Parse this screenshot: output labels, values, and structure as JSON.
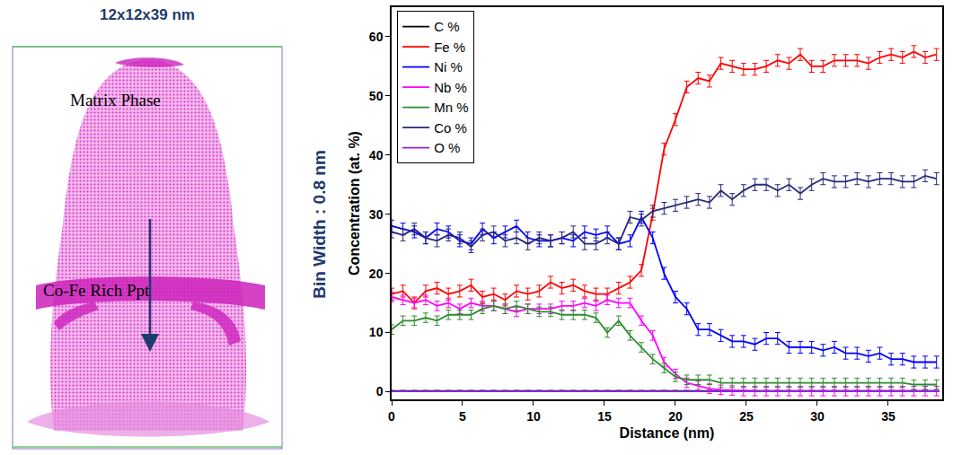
{
  "reconstruction": {
    "title": "12x12x39 nm",
    "labels": [
      "Matrix Phase",
      "Co-Fe Rich Ppt"
    ],
    "side_label": "Bin Width : 0.8 nm"
  },
  "chart_data": {
    "type": "line",
    "x_label": "Distance (nm)",
    "y_label": "Concentration (at. %)",
    "x": [
      0,
      0.8,
      1.6,
      2.4,
      3.2,
      4,
      4.8,
      5.6,
      6.4,
      7.2,
      8,
      8.8,
      9.6,
      10.4,
      11.2,
      12,
      12.8,
      13.6,
      14.4,
      15.2,
      16,
      16.8,
      17.6,
      18.4,
      19.2,
      20,
      20.8,
      21.6,
      22.4,
      23.2,
      24,
      24.8,
      25.6,
      26.4,
      27.2,
      28,
      28.8,
      29.6,
      30.4,
      31.2,
      32,
      32.8,
      33.6,
      34.4,
      35.2,
      36,
      36.8,
      37.6,
      38.4
    ],
    "series": [
      {
        "name": "C %",
        "color": "#000000",
        "error": 0.1,
        "values": [
          0.1,
          0.1,
          0.1,
          0.1,
          0.1,
          0.1,
          0.1,
          0.1,
          0.1,
          0.1,
          0.1,
          0.1,
          0.1,
          0.1,
          0.1,
          0.1,
          0.1,
          0.1,
          0.1,
          0.1,
          0.1,
          0.1,
          0.1,
          0.1,
          0.1,
          0.1,
          0.1,
          0.1,
          0.1,
          0.1,
          0.1,
          0.1,
          0.1,
          0.1,
          0.1,
          0.1,
          0.1,
          0.1,
          0.1,
          0.1,
          0.1,
          0.1,
          0.1,
          0.1,
          0.1,
          0.1,
          0.1,
          0.1,
          0.1
        ]
      },
      {
        "name": "Fe %",
        "color": "#ff0000",
        "error": 1,
        "values": [
          16.5,
          17,
          15,
          17,
          17.5,
          16.5,
          17,
          18,
          16,
          16.5,
          15.5,
          17,
          16.5,
          17,
          18.5,
          17.5,
          18,
          17,
          16.5,
          16.5,
          17.5,
          18.5,
          20.5,
          30,
          41,
          46,
          51.5,
          53,
          52.5,
          55.5,
          55,
          54.5,
          54.5,
          55,
          56,
          55.5,
          57,
          55,
          55,
          56,
          56,
          56,
          55.5,
          56.5,
          57,
          56.5,
          57.5,
          56.5,
          57
        ]
      },
      {
        "name": "Ni %",
        "color": "#0000ff",
        "error": 1,
        "values": [
          28,
          27.5,
          27,
          26,
          27.5,
          27,
          25.5,
          25,
          27.5,
          26,
          27,
          28,
          26,
          25.5,
          25.5,
          26,
          25.5,
          27,
          26.5,
          27,
          25,
          25.5,
          29.5,
          26,
          20,
          16,
          14,
          10.5,
          10.5,
          9.5,
          8.5,
          8.5,
          8,
          9,
          9,
          7.5,
          7.5,
          7.5,
          7,
          7.5,
          6.5,
          6.5,
          6,
          6.5,
          5.5,
          5.5,
          5,
          5,
          5
        ]
      },
      {
        "name": "Nb %",
        "color": "#ff00ff",
        "error": 0.8,
        "values": [
          16,
          15.5,
          15,
          15.5,
          14.5,
          15,
          14,
          15,
          14.5,
          14.5,
          14,
          13.5,
          14,
          14,
          14,
          14.5,
          14.5,
          15,
          14.5,
          15.5,
          15,
          15,
          12,
          9.5,
          5,
          3,
          1.5,
          1,
          0.5,
          0.3,
          0.2,
          0.1,
          0.1,
          0.1,
          0.1,
          0.1,
          0.1,
          0.1,
          0.1,
          0.1,
          0.1,
          0.1,
          0.1,
          0.1,
          0.1,
          0.1,
          0.1,
          0.1,
          0.1
        ]
      },
      {
        "name": "Mn %",
        "color": "#2e8b2e",
        "error": 0.8,
        "values": [
          10.5,
          12,
          12,
          12.5,
          12,
          13,
          13,
          13,
          14,
          14.5,
          14,
          14.5,
          14,
          13.5,
          13.5,
          13,
          13,
          13,
          12.5,
          10,
          12,
          9.5,
          7.5,
          5.5,
          4,
          2.5,
          2,
          2,
          2,
          1.5,
          1.5,
          1.5,
          1.5,
          1.5,
          1.5,
          1.5,
          1.5,
          1.5,
          1.5,
          1.5,
          1.5,
          1.5,
          1.5,
          1.5,
          1.5,
          1.5,
          1.2,
          1.2,
          1.2
        ]
      },
      {
        "name": "Co %",
        "color": "#27277a",
        "error": 1,
        "values": [
          27,
          26.5,
          27.5,
          26,
          25.5,
          26.5,
          26,
          24.5,
          26.5,
          27,
          25.5,
          26,
          25,
          26,
          25.5,
          26,
          27,
          25,
          25,
          26,
          25,
          29.5,
          29,
          30.5,
          31,
          31.5,
          32,
          32.5,
          32,
          34,
          32.5,
          34,
          35,
          35,
          34,
          35,
          33.5,
          35,
          36,
          35.5,
          35.5,
          36,
          35.5,
          36,
          36,
          35.5,
          35.5,
          36.5,
          36
        ]
      },
      {
        "name": "O %",
        "color": "#8a2be2",
        "error": 0.05,
        "values": [
          0.05,
          0.05,
          0.05,
          0.05,
          0.05,
          0.05,
          0.05,
          0.05,
          0.05,
          0.05,
          0.05,
          0.05,
          0.05,
          0.05,
          0.05,
          0.05,
          0.05,
          0.05,
          0.05,
          0.05,
          0.05,
          0.05,
          0.05,
          0.05,
          0.05,
          0.05,
          0.05,
          0.05,
          0.05,
          0.05,
          0.05,
          0.05,
          0.05,
          0.05,
          0.05,
          0.05,
          0.05,
          0.05,
          0.05,
          0.05,
          0.05,
          0.05,
          0.05,
          0.05,
          0.05,
          0.05,
          0.05,
          0.05,
          0.05
        ]
      }
    ],
    "xlim": [
      0,
      38.8
    ],
    "xticks": [
      0,
      5,
      10,
      15,
      20,
      25,
      30,
      35
    ],
    "ylim": [
      -1.3,
      65
    ],
    "yticks": [
      0,
      10,
      20,
      30,
      40,
      50,
      60
    ],
    "grid": false,
    "legend": "upper left"
  }
}
